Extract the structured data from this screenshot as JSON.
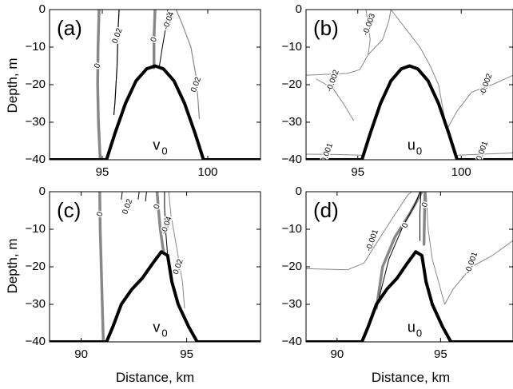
{
  "figure": {
    "ylabel": "Depth, m",
    "xlabel": "Distance, km"
  },
  "chart_data": [
    {
      "type": "line",
      "panel": "(a)",
      "variable": "v",
      "variable_subscript": "0",
      "xlim": [
        92.5,
        102.5
      ],
      "ylim": [
        -40,
        0
      ],
      "xticks": [
        95,
        100
      ],
      "yticks": [
        0,
        -10,
        -20,
        -30,
        -40
      ],
      "bathymetry": [
        [
          92.5,
          -40
        ],
        [
          95.2,
          -40
        ],
        [
          95.6,
          -33
        ],
        [
          96.1,
          -25
        ],
        [
          96.6,
          -19
        ],
        [
          97.1,
          -15.8
        ],
        [
          97.5,
          -15
        ],
        [
          97.9,
          -15.8
        ],
        [
          98.4,
          -19
        ],
        [
          98.9,
          -25
        ],
        [
          99.4,
          -33
        ],
        [
          99.8,
          -40
        ],
        [
          102.5,
          -40
        ]
      ],
      "contours": [
        {
          "level": "0",
          "color": "#888888",
          "width": 3.5,
          "points": [
            [
              94.9,
              -40
            ],
            [
              94.82,
              -30
            ],
            [
              94.78,
              -20
            ],
            [
              94.8,
              -10
            ],
            [
              94.85,
              0
            ]
          ],
          "label_at": [
            94.78,
            -15
          ]
        },
        {
          "level": "0.02",
          "color": "#000000",
          "width": 1.2,
          "points": [
            [
              95.55,
              -28
            ],
            [
              95.6,
              -25
            ],
            [
              95.7,
              -15
            ],
            [
              95.75,
              -5
            ],
            [
              95.8,
              0
            ]
          ],
          "label_at": [
            95.72,
            -7
          ]
        },
        {
          "level": "0",
          "color": "#888888",
          "width": 3.5,
          "points": [
            [
              97.45,
              -15.5
            ],
            [
              97.45,
              -8
            ],
            [
              97.5,
              0
            ]
          ],
          "label_at": [
            97.45,
            -8
          ]
        },
        {
          "level": "-0.04",
          "color": "#000000",
          "width": 1.0,
          "points": [
            [
              97.7,
              -15.3
            ],
            [
              97.85,
              -10
            ],
            [
              98.0,
              -5
            ],
            [
              98.1,
              0
            ]
          ],
          "label_at": [
            98.15,
            -3
          ]
        },
        {
          "level": "0.02",
          "color": "#888888",
          "width": 1.2,
          "points": [
            [
              99.6,
              -29
            ],
            [
              99.55,
              -25
            ],
            [
              99.45,
              -18
            ],
            [
              99.2,
              -10
            ],
            [
              98.8,
              -4
            ],
            [
              98.5,
              0
            ]
          ],
          "label_at": [
            99.45,
            -20
          ]
        }
      ]
    },
    {
      "type": "line",
      "panel": "(b)",
      "variable": "u",
      "variable_subscript": "0",
      "xlim": [
        92.5,
        102.5
      ],
      "ylim": [
        -40,
        0
      ],
      "xticks": [
        95,
        100
      ],
      "yticks": [
        0,
        -10,
        -20,
        -30,
        -40
      ],
      "bathymetry": [
        [
          92.5,
          -40
        ],
        [
          95.2,
          -40
        ],
        [
          95.6,
          -33
        ],
        [
          96.1,
          -25
        ],
        [
          96.6,
          -19
        ],
        [
          97.1,
          -15.8
        ],
        [
          97.5,
          -15
        ],
        [
          97.9,
          -15.8
        ],
        [
          98.4,
          -19
        ],
        [
          98.9,
          -25
        ],
        [
          99.4,
          -33
        ],
        [
          99.8,
          -40
        ],
        [
          102.5,
          -40
        ]
      ],
      "contours": [
        {
          "level": "-0.003",
          "color": "#888888",
          "width": 1.0,
          "points": [
            [
              95.5,
              -12
            ],
            [
              95.6,
              -8
            ],
            [
              95.5,
              -4
            ],
            [
              95.4,
              0
            ]
          ],
          "label_at": [
            95.55,
            -4
          ]
        },
        {
          "level": "-0.002",
          "color": "#888888",
          "width": 1.0,
          "points": [
            [
              92.5,
              -17.5
            ],
            [
              94.5,
              -17
            ],
            [
              95.1,
              -16
            ],
            [
              95.5,
              -12
            ],
            [
              96.2,
              -8
            ],
            [
              96.5,
              -3
            ],
            [
              96.6,
              0
            ]
          ],
          "label_at": [
            93.8,
            -19
          ]
        },
        {
          "level": "-0.002",
          "color": "#888888",
          "width": 1.0,
          "points": [
            [
              102.5,
              -17.5
            ],
            [
              101.5,
              -20
            ],
            [
              100.5,
              -22
            ],
            [
              99.8,
              -27
            ],
            [
              99.3,
              -32
            ],
            [
              98.9,
              -20
            ],
            [
              98.5,
              -15
            ],
            [
              98.0,
              -10
            ],
            [
              97.3,
              -5
            ],
            [
              96.6,
              0
            ]
          ],
          "label_at": [
            101.2,
            -20
          ]
        },
        {
          "level": "-0.002",
          "color": "#888888",
          "width": 1.0,
          "points": [
            [
              94.8,
              -29.5
            ],
            [
              94.3,
              -25
            ],
            [
              93.8,
              -21
            ],
            [
              93.0,
              -18.5
            ]
          ],
          "label_at": [
            93.8,
            -19
          ]
        },
        {
          "level": "-0.001",
          "color": "#888888",
          "width": 1.0,
          "points": [
            [
              92.5,
              -38.5
            ],
            [
              94.0,
              -38.6
            ],
            [
              95.3,
              -38.8
            ]
          ],
          "label_at": [
            93.5,
            -38.5
          ]
        },
        {
          "level": "-0.001",
          "color": "#888888",
          "width": 1.0,
          "points": [
            [
              99.7,
              -38.8
            ],
            [
              101.0,
              -38.5
            ],
            [
              102.5,
              -38.2
            ]
          ],
          "label_at": [
            101,
            -38
          ]
        }
      ]
    },
    {
      "type": "line",
      "panel": "(c)",
      "variable": "v",
      "variable_subscript": "0",
      "xlim": [
        88.5,
        98.5
      ],
      "ylim": [
        -40,
        0
      ],
      "xticks": [
        90,
        95
      ],
      "yticks": [
        0,
        -10,
        -20,
        -30,
        -40
      ],
      "bathymetry": [
        [
          88.5,
          -40
        ],
        [
          91.2,
          -40
        ],
        [
          91.5,
          -36
        ],
        [
          91.9,
          -30
        ],
        [
          92.4,
          -26
        ],
        [
          92.9,
          -23
        ],
        [
          93.4,
          -19
        ],
        [
          93.8,
          -16
        ],
        [
          94.1,
          -17
        ],
        [
          94.3,
          -24
        ],
        [
          94.6,
          -30
        ],
        [
          95.1,
          -36
        ],
        [
          95.5,
          -40
        ],
        [
          98.5,
          -40
        ]
      ],
      "contours": [
        {
          "level": "0",
          "color": "#888888",
          "width": 3.5,
          "points": [
            [
              91.05,
              -40
            ],
            [
              91.0,
              -30
            ],
            [
              90.95,
              -20
            ],
            [
              90.9,
              -10
            ],
            [
              90.88,
              0
            ]
          ],
          "label_at": [
            90.9,
            -6
          ]
        },
        {
          "level": "0.02",
          "color": "#000000",
          "width": 1.0,
          "points": [
            [
              91.9,
              -2
            ],
            [
              91.95,
              0
            ]
          ],
          "label_at": [
            92.2,
            -4
          ]
        },
        {
          "level": "0",
          "color": "#888888",
          "width": 3.5,
          "points": [
            [
              93.9,
              -16
            ],
            [
              93.75,
              -10
            ],
            [
              93.65,
              -4
            ],
            [
              93.6,
              0
            ]
          ],
          "label_at": [
            93.6,
            -4
          ]
        },
        {
          "level": "-0.04",
          "color": "#000000",
          "width": 1.0,
          "points": [
            [
              94.1,
              -17
            ],
            [
              94.0,
              -10
            ],
            [
              93.95,
              -4
            ],
            [
              93.95,
              0
            ]
          ],
          "label_at": [
            94.05,
            -9
          ]
        },
        {
          "level": "0.02",
          "color": "#888888",
          "width": 1.0,
          "points": [
            [
              94.9,
              -31
            ],
            [
              94.8,
              -24
            ],
            [
              94.5,
              -14
            ],
            [
              94.25,
              -6
            ],
            [
              94.15,
              0
            ]
          ],
          "label_at": [
            94.6,
            -20
          ]
        },
        {
          "level": "",
          "color": "#000000",
          "width": 1.0,
          "points": [
            [
              92.7,
              -2
            ],
            [
              92.75,
              0
            ]
          ],
          "label_at": null
        },
        {
          "level": "",
          "color": "#000000",
          "width": 1.0,
          "points": [
            [
              93.05,
              -2.5
            ],
            [
              93.1,
              0
            ]
          ],
          "label_at": null
        }
      ]
    },
    {
      "type": "line",
      "panel": "(d)",
      "variable": "u",
      "variable_subscript": "0",
      "xlim": [
        88.5,
        98.5
      ],
      "ylim": [
        -40,
        0
      ],
      "xticks": [
        90,
        95
      ],
      "yticks": [
        0,
        -10,
        -20,
        -30,
        -40
      ],
      "bathymetry": [
        [
          88.5,
          -40
        ],
        [
          91.2,
          -40
        ],
        [
          91.5,
          -36
        ],
        [
          91.9,
          -30
        ],
        [
          92.4,
          -26
        ],
        [
          92.9,
          -23
        ],
        [
          93.4,
          -19
        ],
        [
          93.8,
          -16
        ],
        [
          94.1,
          -17
        ],
        [
          94.3,
          -24
        ],
        [
          94.6,
          -30
        ],
        [
          95.1,
          -36
        ],
        [
          95.5,
          -40
        ],
        [
          98.5,
          -40
        ]
      ],
      "contours": [
        {
          "level": "0",
          "color": "#888888",
          "width": 3.5,
          "points": [
            [
              91.9,
              -31
            ],
            [
              92.2,
              -20
            ],
            [
              92.8,
              -12
            ],
            [
              93.5,
              -6
            ],
            [
              94.1,
              0
            ]
          ],
          "label_at": [
            93.3,
            -9
          ]
        },
        {
          "level": "-0.001",
          "color": "#888888",
          "width": 1.0,
          "points": [
            [
              88.5,
              -20.5
            ],
            [
              90.5,
              -20.8
            ],
            [
              91.3,
              -19
            ],
            [
              92.1,
              -12
            ],
            [
              92.8,
              -6
            ],
            [
              93.4,
              -1
            ],
            [
              93.6,
              0
            ]
          ],
          "label_at": [
            91.7,
            -13
          ]
        },
        {
          "level": "-0.001",
          "color": "#888888",
          "width": 1.0,
          "points": [
            [
              98.5,
              -13
            ],
            [
              97.5,
              -17
            ],
            [
              96.5,
              -20
            ],
            [
              95.6,
              -26
            ],
            [
              95.2,
              -30
            ],
            [
              94.9,
              -24
            ],
            [
              94.6,
              -18
            ],
            [
              94.4,
              -10
            ],
            [
              94.3,
              0
            ]
          ],
          "label_at": [
            96.5,
            -19
          ]
        },
        {
          "level": "0",
          "color": "#888888",
          "width": 3.5,
          "points": [
            [
              94.2,
              -14
            ],
            [
              94.22,
              -8
            ],
            [
              94.25,
              0
            ]
          ],
          "label_at": [
            94.25,
            -3.5
          ]
        },
        {
          "level": "",
          "color": "#000000",
          "width": 1.0,
          "points": [
            [
              92.0,
              -29
            ],
            [
              92.5,
              -18
            ],
            [
              93.2,
              -9
            ],
            [
              93.8,
              -3
            ],
            [
              94.0,
              0
            ]
          ],
          "label_at": null
        },
        {
          "level": "",
          "color": "#000000",
          "width": 1.0,
          "points": [
            [
              94.0,
              -13
            ],
            [
              94.0,
              -6
            ],
            [
              94.05,
              0
            ]
          ],
          "label_at": null
        }
      ]
    }
  ]
}
